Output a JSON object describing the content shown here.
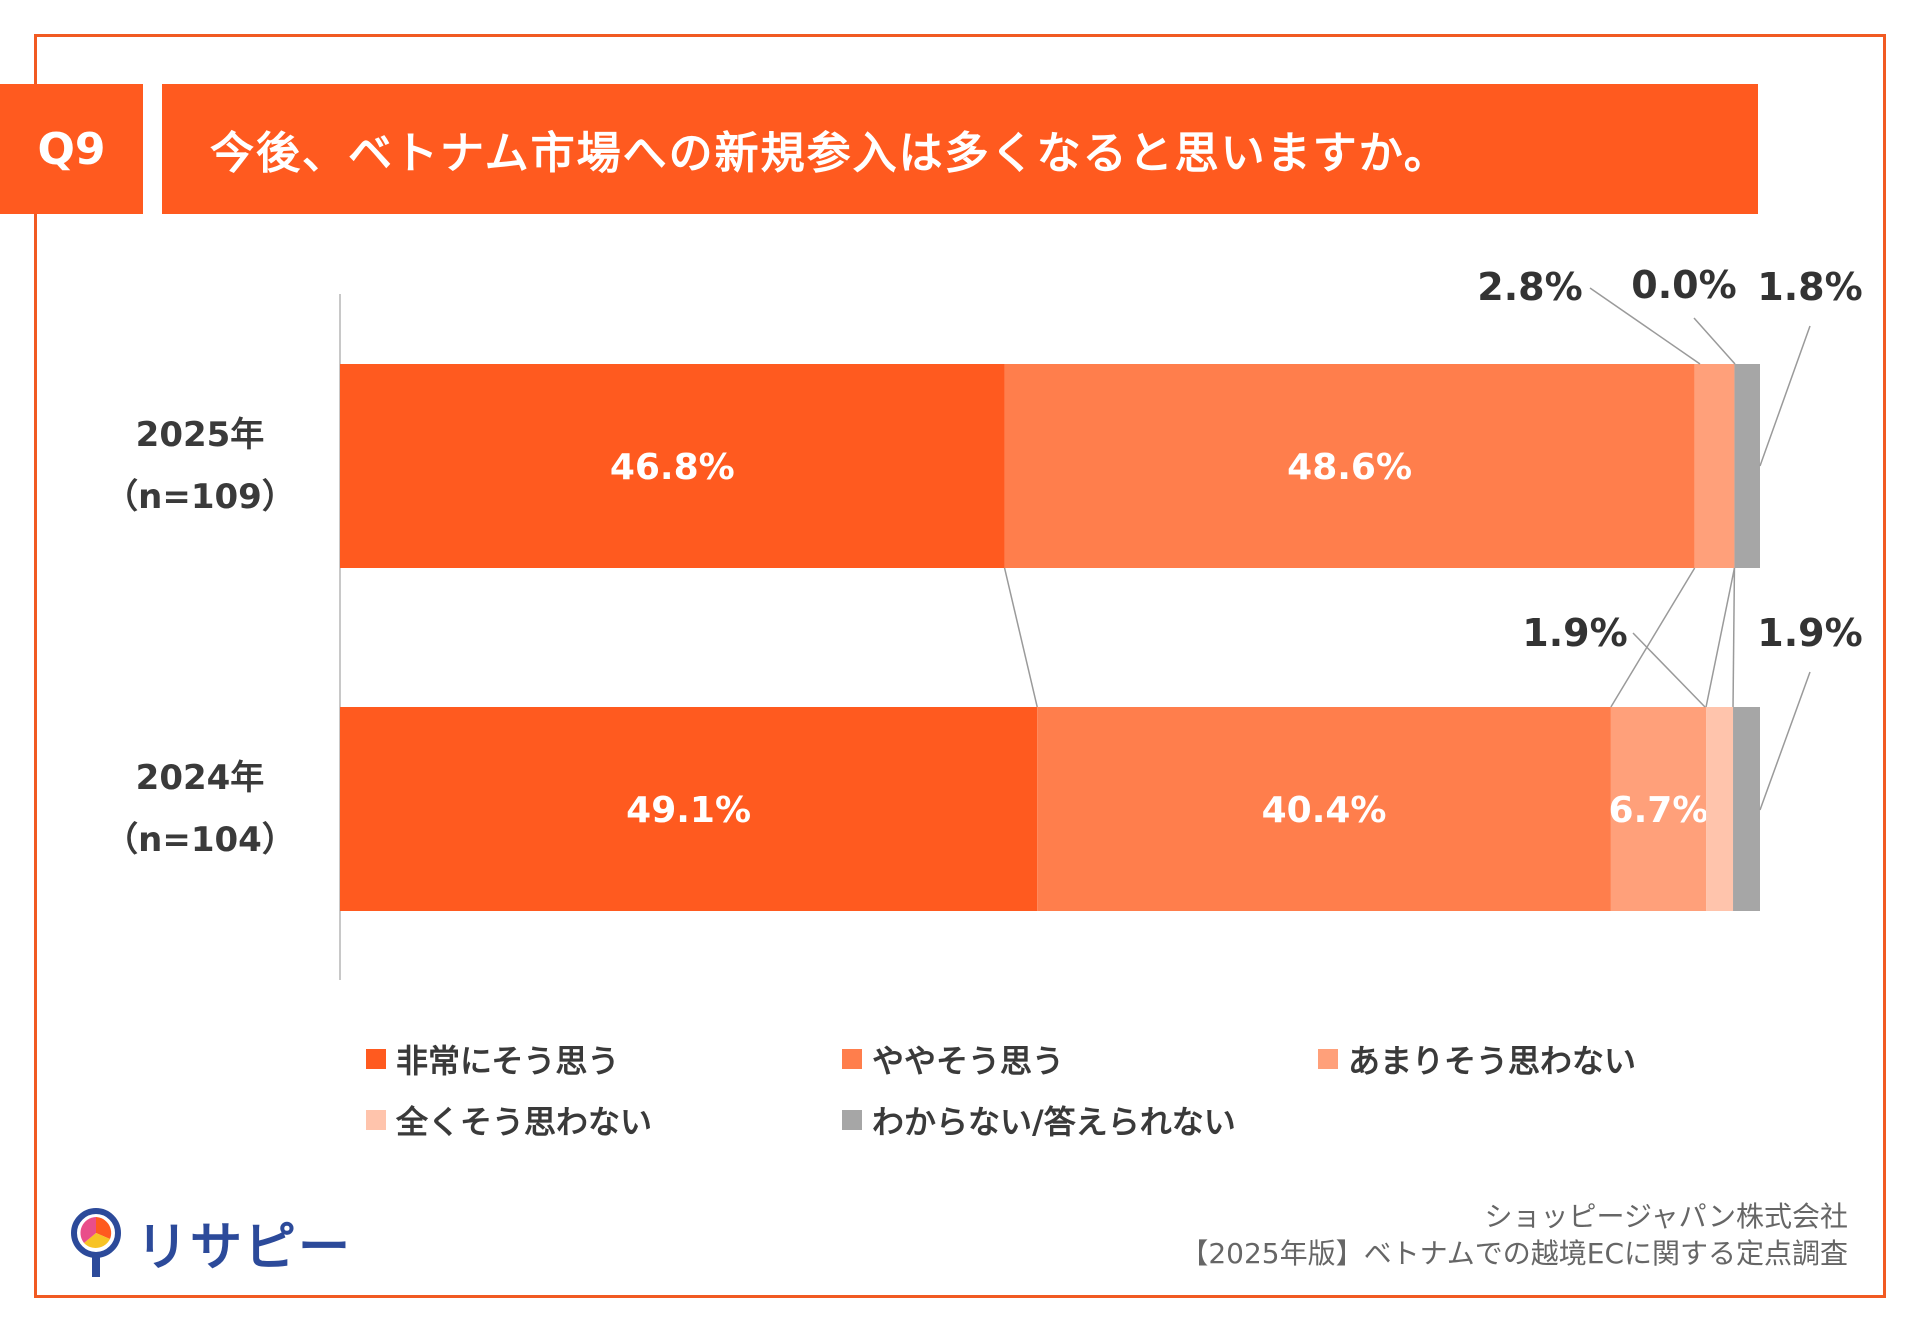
{
  "header": {
    "q_label": "Q9",
    "title": "今後、ベトナム市場への新規参入は多くなると思いますか。"
  },
  "colors": {
    "c1": "#ff5a1f",
    "c2": "#ff7e4c",
    "c3": "#ffa07a",
    "c4": "#ffc4ac",
    "c5": "#a6a6a6",
    "accent": "#f15a22"
  },
  "chart_data": {
    "type": "bar",
    "orientation": "horizontal-stacked-100",
    "categories": [
      {
        "year": "2025年",
        "n": "（n=109）"
      },
      {
        "year": "2024年",
        "n": "（n=104）"
      }
    ],
    "series": [
      {
        "name": "非常にそう思う",
        "values": [
          46.8,
          49.1
        ],
        "labels": [
          "46.8%",
          "49.1%"
        ]
      },
      {
        "name": "ややそう思う",
        "values": [
          48.6,
          40.4
        ],
        "labels": [
          "48.6%",
          "40.4%"
        ]
      },
      {
        "name": "あまりそう思わない",
        "values": [
          2.8,
          6.7
        ],
        "labels": [
          "2.8%",
          "6.7%"
        ]
      },
      {
        "name": "全くそう思わない",
        "values": [
          0.0,
          1.9
        ],
        "labels": [
          "0.0%",
          "1.9%"
        ]
      },
      {
        "name": "わからない/答えられない",
        "values": [
          1.8,
          1.9
        ],
        "labels": [
          "1.8%",
          "1.9%"
        ]
      }
    ],
    "xlim": [
      0,
      100
    ]
  },
  "credit": {
    "line1": "ショッピージャパン株式会社",
    "line2": "【2025年版】ベトナムでの越境ECに関する定点調査"
  },
  "logo": {
    "text": "リサピー"
  }
}
